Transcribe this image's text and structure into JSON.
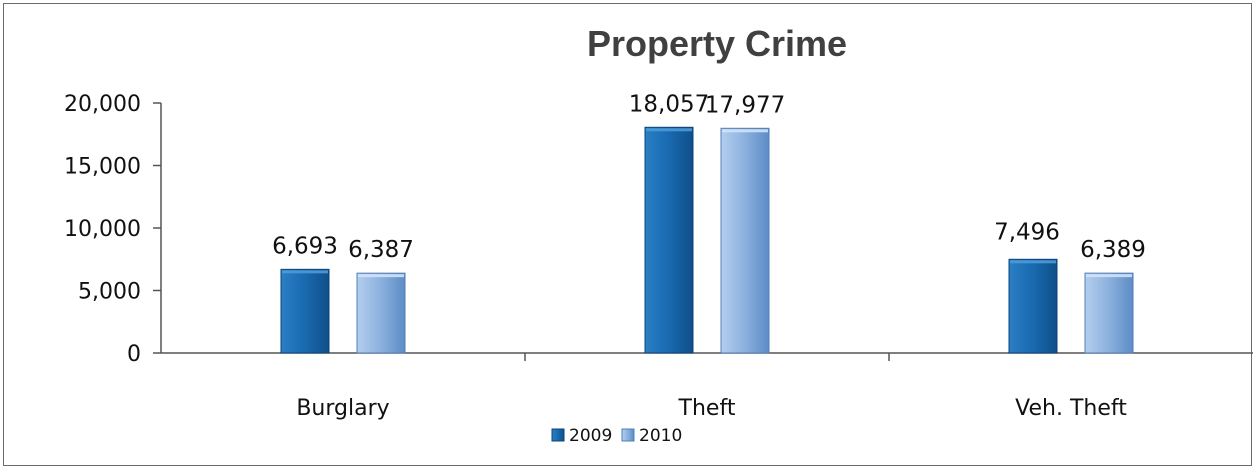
{
  "chart_data": {
    "type": "bar",
    "title": "Property Crime",
    "categories": [
      "Burglary",
      "Theft",
      "Veh. Theft"
    ],
    "series": [
      {
        "name": "2009",
        "values": [
          6693,
          18057,
          7496
        ],
        "labels": [
          "6,693",
          "18,057",
          "7,496"
        ],
        "color": "#1f6fb4"
      },
      {
        "name": "2010",
        "values": [
          6387,
          17977,
          6389
        ],
        "labels": [
          "6,387",
          "17,977",
          "6,389"
        ],
        "color": "#8fb4e0"
      }
    ],
    "ylim": [
      0,
      20000
    ],
    "yticks": [
      0,
      5000,
      10000,
      15000,
      20000
    ],
    "ytick_labels": [
      "0",
      "5,000",
      "10,000",
      "15,000",
      "20,000"
    ],
    "grid": false,
    "legend": "bottom"
  }
}
